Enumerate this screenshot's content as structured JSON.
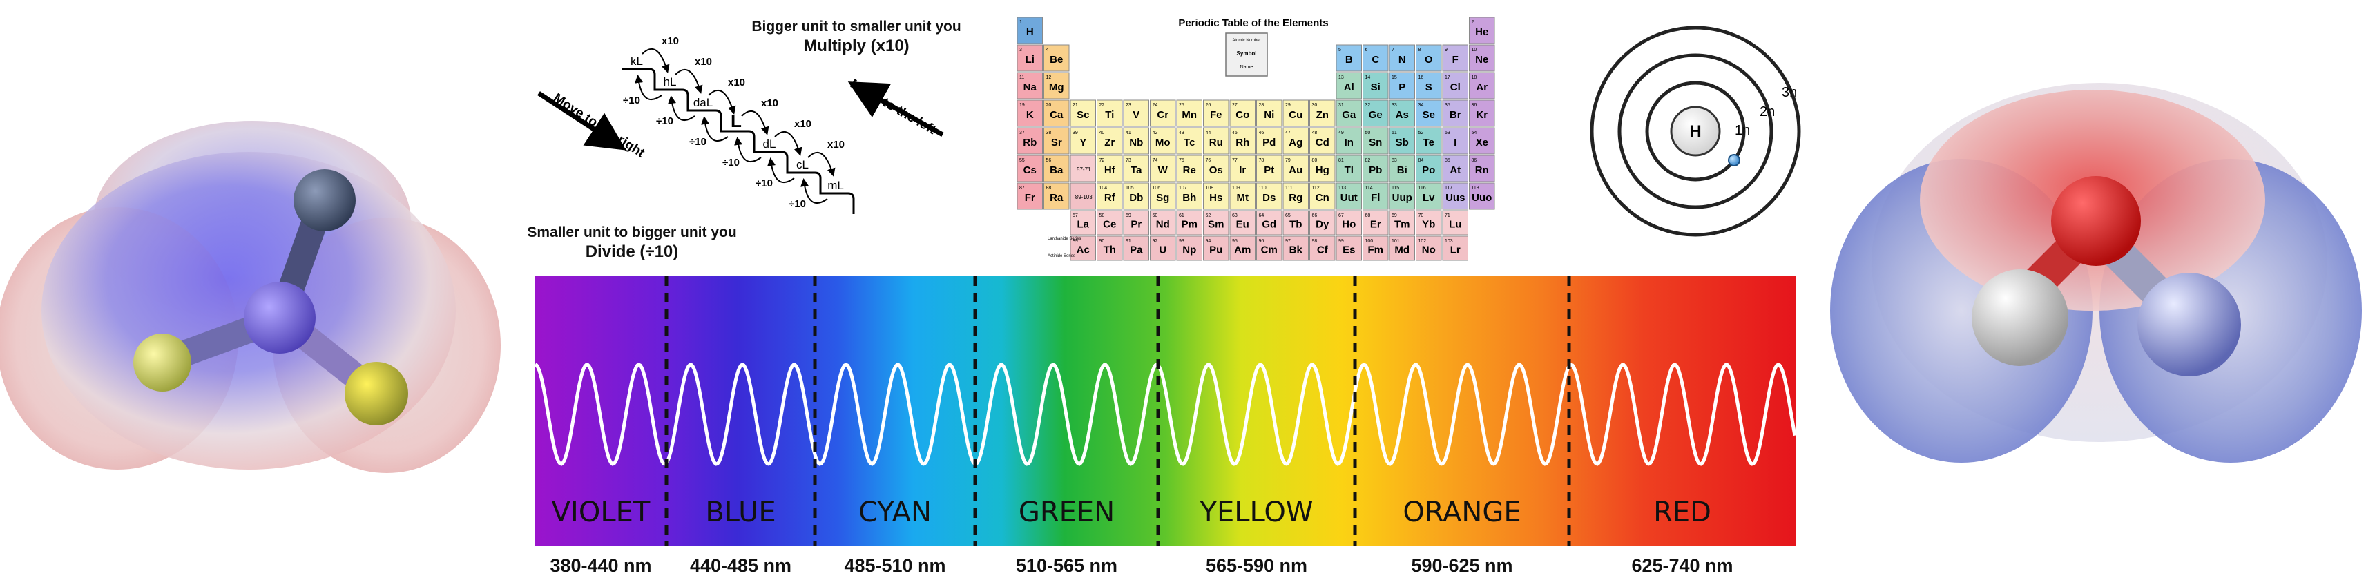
{
  "conversion": {
    "top_line1": "Bigger unit to smaller unit you",
    "top_line2": "Multiply (x10)",
    "bottom_line1": "Smaller unit to bigger unit you",
    "bottom_line2": "Divide (÷10)",
    "left_arrow_label": "Move to the right",
    "right_arrow_label": "Move to the left",
    "units": [
      "kL",
      "hL",
      "daL",
      "L",
      "dL",
      "cL",
      "mL"
    ],
    "multiply_label": "x10",
    "divide_label": "÷10"
  },
  "periodic_table": {
    "title": "Periodic Table of the Elements",
    "key": {
      "atomic_number": "Atomic Number",
      "symbol": "Symbol",
      "name": "Name"
    },
    "lanthanide_label": "Lanthanide Series",
    "actinide_label": "Actinide Series",
    "range_57_71": "57-71",
    "range_89_103": "89-103",
    "elements": [
      {
        "s": "H",
        "n": 1,
        "p": 1,
        "g": 1,
        "c": "#6fa8dc"
      },
      {
        "s": "He",
        "n": 2,
        "p": 1,
        "g": 18,
        "c": "#c9a0dc"
      },
      {
        "s": "Li",
        "n": 3,
        "p": 2,
        "g": 1,
        "c": "#f4a6b0"
      },
      {
        "s": "Be",
        "n": 4,
        "p": 2,
        "g": 2,
        "c": "#f9d08b"
      },
      {
        "s": "B",
        "n": 5,
        "p": 2,
        "g": 13,
        "c": "#8fc7ef"
      },
      {
        "s": "C",
        "n": 6,
        "p": 2,
        "g": 14,
        "c": "#8fc7ef"
      },
      {
        "s": "N",
        "n": 7,
        "p": 2,
        "g": 15,
        "c": "#8fc7ef"
      },
      {
        "s": "O",
        "n": 8,
        "p": 2,
        "g": 16,
        "c": "#8fc7ef"
      },
      {
        "s": "F",
        "n": 9,
        "p": 2,
        "g": 17,
        "c": "#c3b4e6"
      },
      {
        "s": "Ne",
        "n": 10,
        "p": 2,
        "g": 18,
        "c": "#c9a0dc"
      },
      {
        "s": "Na",
        "n": 11,
        "p": 3,
        "g": 1,
        "c": "#f4a6b0"
      },
      {
        "s": "Mg",
        "n": 12,
        "p": 3,
        "g": 2,
        "c": "#f9d08b"
      },
      {
        "s": "Al",
        "n": 13,
        "p": 3,
        "g": 13,
        "c": "#a8d8c0"
      },
      {
        "s": "Si",
        "n": 14,
        "p": 3,
        "g": 14,
        "c": "#8fd3cf"
      },
      {
        "s": "P",
        "n": 15,
        "p": 3,
        "g": 15,
        "c": "#8fc7ef"
      },
      {
        "s": "S",
        "n": 16,
        "p": 3,
        "g": 16,
        "c": "#8fc7ef"
      },
      {
        "s": "Cl",
        "n": 17,
        "p": 3,
        "g": 17,
        "c": "#c3b4e6"
      },
      {
        "s": "Ar",
        "n": 18,
        "p": 3,
        "g": 18,
        "c": "#c9a0dc"
      },
      {
        "s": "K",
        "n": 19,
        "p": 4,
        "g": 1,
        "c": "#f4a6b0"
      },
      {
        "s": "Ca",
        "n": 20,
        "p": 4,
        "g": 2,
        "c": "#f9d08b"
      },
      {
        "s": "Sc",
        "n": 21,
        "p": 4,
        "g": 3,
        "c": "#fbf3b5"
      },
      {
        "s": "Ti",
        "n": 22,
        "p": 4,
        "g": 4,
        "c": "#fbf3b5"
      },
      {
        "s": "V",
        "n": 23,
        "p": 4,
        "g": 5,
        "c": "#fbf3b5"
      },
      {
        "s": "Cr",
        "n": 24,
        "p": 4,
        "g": 6,
        "c": "#fbf3b5"
      },
      {
        "s": "Mn",
        "n": 25,
        "p": 4,
        "g": 7,
        "c": "#fbf3b5"
      },
      {
        "s": "Fe",
        "n": 26,
        "p": 4,
        "g": 8,
        "c": "#fbf3b5"
      },
      {
        "s": "Co",
        "n": 27,
        "p": 4,
        "g": 9,
        "c": "#fbf3b5"
      },
      {
        "s": "Ni",
        "n": 28,
        "p": 4,
        "g": 10,
        "c": "#fbf3b5"
      },
      {
        "s": "Cu",
        "n": 29,
        "p": 4,
        "g": 11,
        "c": "#fbf3b5"
      },
      {
        "s": "Zn",
        "n": 30,
        "p": 4,
        "g": 12,
        "c": "#fbf3b5"
      },
      {
        "s": "Ga",
        "n": 31,
        "p": 4,
        "g": 13,
        "c": "#a8d8c0"
      },
      {
        "s": "Ge",
        "n": 32,
        "p": 4,
        "g": 14,
        "c": "#8fd3cf"
      },
      {
        "s": "As",
        "n": 33,
        "p": 4,
        "g": 15,
        "c": "#8fd3cf"
      },
      {
        "s": "Se",
        "n": 34,
        "p": 4,
        "g": 16,
        "c": "#8fc7ef"
      },
      {
        "s": "Br",
        "n": 35,
        "p": 4,
        "g": 17,
        "c": "#c3b4e6"
      },
      {
        "s": "Kr",
        "n": 36,
        "p": 4,
        "g": 18,
        "c": "#c9a0dc"
      },
      {
        "s": "Rb",
        "n": 37,
        "p": 5,
        "g": 1,
        "c": "#f4a6b0"
      },
      {
        "s": "Sr",
        "n": 38,
        "p": 5,
        "g": 2,
        "c": "#f9d08b"
      },
      {
        "s": "Y",
        "n": 39,
        "p": 5,
        "g": 3,
        "c": "#fbf3b5"
      },
      {
        "s": "Zr",
        "n": 40,
        "p": 5,
        "g": 4,
        "c": "#fbf3b5"
      },
      {
        "s": "Nb",
        "n": 41,
        "p": 5,
        "g": 5,
        "c": "#fbf3b5"
      },
      {
        "s": "Mo",
        "n": 42,
        "p": 5,
        "g": 6,
        "c": "#fbf3b5"
      },
      {
        "s": "Tc",
        "n": 43,
        "p": 5,
        "g": 7,
        "c": "#fbf3b5"
      },
      {
        "s": "Ru",
        "n": 44,
        "p": 5,
        "g": 8,
        "c": "#fbf3b5"
      },
      {
        "s": "Rh",
        "n": 45,
        "p": 5,
        "g": 9,
        "c": "#fbf3b5"
      },
      {
        "s": "Pd",
        "n": 46,
        "p": 5,
        "g": 10,
        "c": "#fbf3b5"
      },
      {
        "s": "Ag",
        "n": 47,
        "p": 5,
        "g": 11,
        "c": "#fbf3b5"
      },
      {
        "s": "Cd",
        "n": 48,
        "p": 5,
        "g": 12,
        "c": "#fbf3b5"
      },
      {
        "s": "In",
        "n": 49,
        "p": 5,
        "g": 13,
        "c": "#a8d8c0"
      },
      {
        "s": "Sn",
        "n": 50,
        "p": 5,
        "g": 14,
        "c": "#a8d8c0"
      },
      {
        "s": "Sb",
        "n": 51,
        "p": 5,
        "g": 15,
        "c": "#8fd3cf"
      },
      {
        "s": "Te",
        "n": 52,
        "p": 5,
        "g": 16,
        "c": "#8fd3cf"
      },
      {
        "s": "I",
        "n": 53,
        "p": 5,
        "g": 17,
        "c": "#c3b4e6"
      },
      {
        "s": "Xe",
        "n": 54,
        "p": 5,
        "g": 18,
        "c": "#c9a0dc"
      },
      {
        "s": "Cs",
        "n": 55,
        "p": 6,
        "g": 1,
        "c": "#f4a6b0"
      },
      {
        "s": "Ba",
        "n": 56,
        "p": 6,
        "g": 2,
        "c": "#f9d08b"
      },
      {
        "s": "Hf",
        "n": 72,
        "p": 6,
        "g": 4,
        "c": "#fbf3b5"
      },
      {
        "s": "Ta",
        "n": 73,
        "p": 6,
        "g": 5,
        "c": "#fbf3b5"
      },
      {
        "s": "W",
        "n": 74,
        "p": 6,
        "g": 6,
        "c": "#fbf3b5"
      },
      {
        "s": "Re",
        "n": 75,
        "p": 6,
        "g": 7,
        "c": "#fbf3b5"
      },
      {
        "s": "Os",
        "n": 76,
        "p": 6,
        "g": 8,
        "c": "#fbf3b5"
      },
      {
        "s": "Ir",
        "n": 77,
        "p": 6,
        "g": 9,
        "c": "#fbf3b5"
      },
      {
        "s": "Pt",
        "n": 78,
        "p": 6,
        "g": 10,
        "c": "#fbf3b5"
      },
      {
        "s": "Au",
        "n": 79,
        "p": 6,
        "g": 11,
        "c": "#fbf3b5"
      },
      {
        "s": "Hg",
        "n": 80,
        "p": 6,
        "g": 12,
        "c": "#fbf3b5"
      },
      {
        "s": "Tl",
        "n": 81,
        "p": 6,
        "g": 13,
        "c": "#a8d8c0"
      },
      {
        "s": "Pb",
        "n": 82,
        "p": 6,
        "g": 14,
        "c": "#a8d8c0"
      },
      {
        "s": "Bi",
        "n": 83,
        "p": 6,
        "g": 15,
        "c": "#a8d8c0"
      },
      {
        "s": "Po",
        "n": 84,
        "p": 6,
        "g": 16,
        "c": "#8fd3cf"
      },
      {
        "s": "At",
        "n": 85,
        "p": 6,
        "g": 17,
        "c": "#c3b4e6"
      },
      {
        "s": "Rn",
        "n": 86,
        "p": 6,
        "g": 18,
        "c": "#c9a0dc"
      },
      {
        "s": "Fr",
        "n": 87,
        "p": 7,
        "g": 1,
        "c": "#f4a6b0"
      },
      {
        "s": "Ra",
        "n": 88,
        "p": 7,
        "g": 2,
        "c": "#f9d08b"
      },
      {
        "s": "Rf",
        "n": 104,
        "p": 7,
        "g": 4,
        "c": "#fbf3b5"
      },
      {
        "s": "Db",
        "n": 105,
        "p": 7,
        "g": 5,
        "c": "#fbf3b5"
      },
      {
        "s": "Sg",
        "n": 106,
        "p": 7,
        "g": 6,
        "c": "#fbf3b5"
      },
      {
        "s": "Bh",
        "n": 107,
        "p": 7,
        "g": 7,
        "c": "#fbf3b5"
      },
      {
        "s": "Hs",
        "n": 108,
        "p": 7,
        "g": 8,
        "c": "#fbf3b5"
      },
      {
        "s": "Mt",
        "n": 109,
        "p": 7,
        "g": 9,
        "c": "#fbf3b5"
      },
      {
        "s": "Ds",
        "n": 110,
        "p": 7,
        "g": 10,
        "c": "#fbf3b5"
      },
      {
        "s": "Rg",
        "n": 111,
        "p": 7,
        "g": 11,
        "c": "#fbf3b5"
      },
      {
        "s": "Cn",
        "n": 112,
        "p": 7,
        "g": 12,
        "c": "#fbf3b5"
      },
      {
        "s": "Uut",
        "n": 113,
        "p": 7,
        "g": 13,
        "c": "#a8d8c0"
      },
      {
        "s": "Fl",
        "n": 114,
        "p": 7,
        "g": 14,
        "c": "#a8d8c0"
      },
      {
        "s": "Uup",
        "n": 115,
        "p": 7,
        "g": 15,
        "c": "#a8d8c0"
      },
      {
        "s": "Lv",
        "n": 116,
        "p": 7,
        "g": 16,
        "c": "#a8d8c0"
      },
      {
        "s": "Uus",
        "n": 117,
        "p": 7,
        "g": 17,
        "c": "#c3b4e6"
      },
      {
        "s": "Uuo",
        "n": 118,
        "p": 7,
        "g": 18,
        "c": "#c9a0dc"
      }
    ],
    "lanthanides": [
      [
        "La",
        57
      ],
      [
        "Ce",
        58
      ],
      [
        "Pr",
        59
      ],
      [
        "Nd",
        60
      ],
      [
        "Pm",
        61
      ],
      [
        "Sm",
        62
      ],
      [
        "Eu",
        63
      ],
      [
        "Gd",
        64
      ],
      [
        "Tb",
        65
      ],
      [
        "Dy",
        66
      ],
      [
        "Ho",
        67
      ],
      [
        "Er",
        68
      ],
      [
        "Tm",
        69
      ],
      [
        "Yb",
        70
      ],
      [
        "Lu",
        71
      ]
    ],
    "actinides": [
      [
        "Ac",
        89
      ],
      [
        "Th",
        90
      ],
      [
        "Pa",
        91
      ],
      [
        "U",
        92
      ],
      [
        "Np",
        93
      ],
      [
        "Pu",
        94
      ],
      [
        "Am",
        95
      ],
      [
        "Cm",
        96
      ],
      [
        "Bk",
        97
      ],
      [
        "Cf",
        98
      ],
      [
        "Es",
        99
      ],
      [
        "Fm",
        100
      ],
      [
        "Md",
        101
      ],
      [
        "No",
        102
      ],
      [
        "Lr",
        103
      ]
    ],
    "lanthanide_color": "#f6cdd0",
    "actinide_color": "#f2c1c6"
  },
  "bohr_model": {
    "nucleus": "H",
    "shells": [
      "1n",
      "2n",
      "3n"
    ]
  },
  "spectrum": {
    "bands": [
      {
        "name": "VIOLET",
        "range": "380-440 nm",
        "color": "#8f12c9"
      },
      {
        "name": "BLUE",
        "range": "440-485 nm",
        "color": "#3a2bd6"
      },
      {
        "name": "CYAN",
        "range": "485-510 nm",
        "color": "#19a9ee"
      },
      {
        "name": "GREEN",
        "range": "510-565 nm",
        "color": "#22b53a"
      },
      {
        "name": "YELLOW",
        "range": "565-590 nm",
        "color": "#f5e11a"
      },
      {
        "name": "ORANGE",
        "range": "590-625 nm",
        "color": "#f7901e"
      },
      {
        "name": "RED",
        "range": "625-740 nm",
        "color": "#e8201e"
      }
    ]
  },
  "molecules": {
    "left": "ammonia-electrostatic-potential",
    "right": "water-electrostatic-potential"
  }
}
